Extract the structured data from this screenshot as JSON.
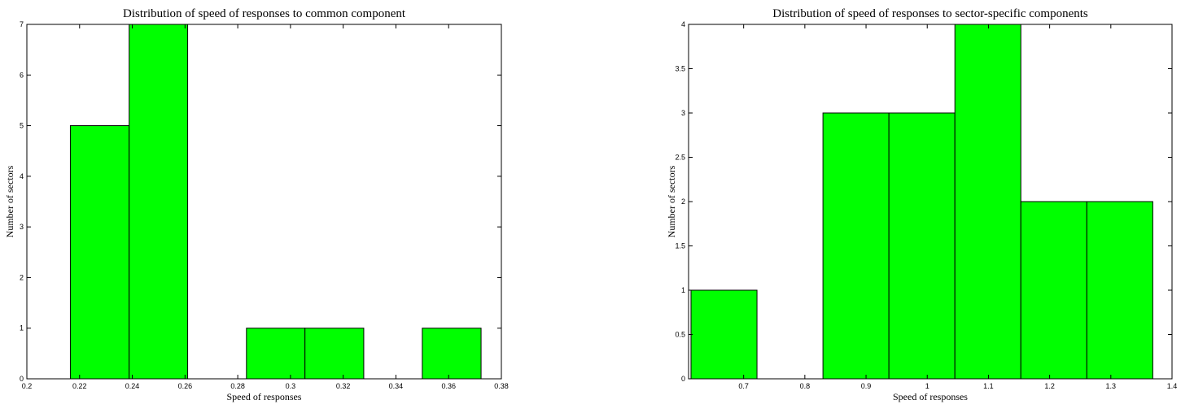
{
  "chart_data": [
    {
      "type": "bar",
      "title": "Distribution of speed of responses to common component",
      "xlabel": "Speed of responses",
      "ylabel": "Number of sectors",
      "xlim": [
        0.2,
        0.38
      ],
      "ylim": [
        0,
        7
      ],
      "xticks": [
        0.2,
        0.22,
        0.24,
        0.26,
        0.28,
        0.3,
        0.32,
        0.34,
        0.36,
        0.38
      ],
      "xtick_labels": [
        "0.2",
        "0.22",
        "0.24",
        "0.26",
        "0.28",
        "0.3",
        "0.32",
        "0.34",
        "0.36",
        "0.38"
      ],
      "yticks": [
        0,
        1,
        2,
        3,
        4,
        5,
        6,
        7
      ],
      "ytick_labels": [
        "0",
        "1",
        "2",
        "3",
        "4",
        "5",
        "6",
        "7"
      ],
      "bin_edges": [
        0.2165,
        0.2388,
        0.261,
        0.2833,
        0.3055,
        0.3278,
        0.35,
        0.3723
      ],
      "values": [
        5,
        7,
        0,
        1,
        1,
        0,
        1
      ],
      "grid": false
    },
    {
      "type": "bar",
      "title": "Distribution of speed of responses to sector-specific components",
      "xlabel": "Speed of responses",
      "ylabel": "Number of sectors",
      "xlim": [
        0.61,
        1.4
      ],
      "ylim": [
        0,
        4
      ],
      "xticks": [
        0.7,
        0.8,
        0.9,
        1.0,
        1.1,
        1.2,
        1.3,
        1.4
      ],
      "xtick_labels": [
        "0.7",
        "0.8",
        "0.9",
        "1",
        "1.1",
        "1.2",
        "1.3",
        "1.4"
      ],
      "yticks": [
        0,
        0.5,
        1,
        1.5,
        2,
        2.5,
        3,
        3.5,
        4
      ],
      "ytick_labels": [
        "0",
        "0.5",
        "1",
        "1.5",
        "2",
        "2.5",
        "3",
        "3.5",
        "4"
      ],
      "bin_edges": [
        0.614,
        0.7218,
        0.8296,
        0.9374,
        1.0452,
        1.153,
        1.2608,
        1.3686
      ],
      "values": [
        1,
        0,
        3,
        3,
        4,
        2,
        2
      ],
      "grid": false
    }
  ]
}
